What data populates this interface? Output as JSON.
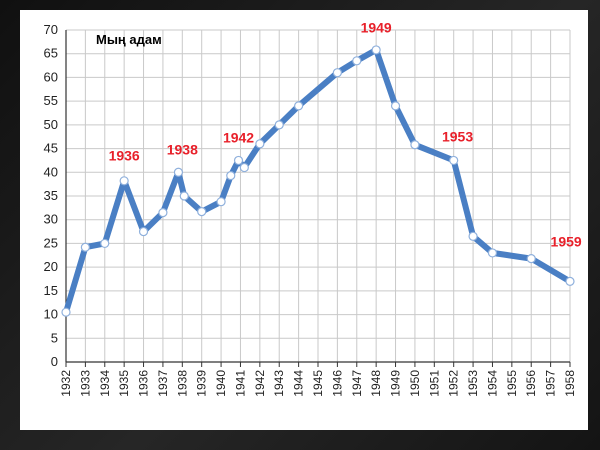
{
  "chart_data": {
    "type": "line",
    "title": "",
    "unit_label": "Мың адам",
    "xlabel": "",
    "ylabel": "",
    "ylim": [
      0,
      70
    ],
    "yticks": [
      0,
      5,
      10,
      15,
      20,
      25,
      30,
      35,
      40,
      45,
      50,
      55,
      60,
      65,
      70
    ],
    "grid": true,
    "categories": [
      "1932",
      "1933",
      "1934",
      "1935",
      "1936",
      "1937",
      "1938",
      "1939",
      "1940",
      "1941",
      "1942",
      "1943",
      "1944",
      "1945",
      "1946",
      "1947",
      "1948",
      "1949",
      "1950",
      "1951",
      "1952",
      "1953",
      "1954",
      "1955",
      "1956",
      "1957",
      "1958"
    ],
    "points": [
      {
        "x": 1932.0,
        "y": 10.5
      },
      {
        "x": 1933.0,
        "y": 24.2
      },
      {
        "x": 1934.0,
        "y": 25.0
      },
      {
        "x": 1935.0,
        "y": 38.2
      },
      {
        "x": 1936.0,
        "y": 27.5
      },
      {
        "x": 1937.0,
        "y": 31.5
      },
      {
        "x": 1937.8,
        "y": 40.0
      },
      {
        "x": 1938.1,
        "y": 35.0
      },
      {
        "x": 1939.0,
        "y": 31.7
      },
      {
        "x": 1940.0,
        "y": 33.8
      },
      {
        "x": 1940.5,
        "y": 39.3
      },
      {
        "x": 1940.9,
        "y": 42.5
      },
      {
        "x": 1941.2,
        "y": 41.0
      },
      {
        "x": 1942.0,
        "y": 46.0
      },
      {
        "x": 1943.0,
        "y": 50.0
      },
      {
        "x": 1944.0,
        "y": 54.0
      },
      {
        "x": 1946.0,
        "y": 61.0
      },
      {
        "x": 1947.0,
        "y": 63.5
      },
      {
        "x": 1948.0,
        "y": 65.8
      },
      {
        "x": 1949.0,
        "y": 54.0
      },
      {
        "x": 1950.0,
        "y": 45.8
      },
      {
        "x": 1952.0,
        "y": 42.5
      },
      {
        "x": 1953.0,
        "y": 26.5
      },
      {
        "x": 1954.0,
        "y": 23.0
      },
      {
        "x": 1956.0,
        "y": 21.8
      },
      {
        "x": 1958.0,
        "y": 17.0
      }
    ],
    "annotations": [
      {
        "text": "1936",
        "x": 1935.0,
        "y": 42.5
      },
      {
        "text": "1938",
        "x": 1938.0,
        "y": 43.8
      },
      {
        "text": "1942",
        "x": 1940.9,
        "y": 46.3
      },
      {
        "text": "1949",
        "x": 1948.0,
        "y": 69.5
      },
      {
        "text": "1953",
        "x": 1952.2,
        "y": 46.5
      },
      {
        "text": "1959",
        "x": 1957.8,
        "y": 24.3
      }
    ],
    "colors": {
      "line": "#4a7fc4",
      "marker_fill": "#ffffff",
      "annotation": "#e8202a",
      "grid": "#c9c9c9"
    }
  }
}
